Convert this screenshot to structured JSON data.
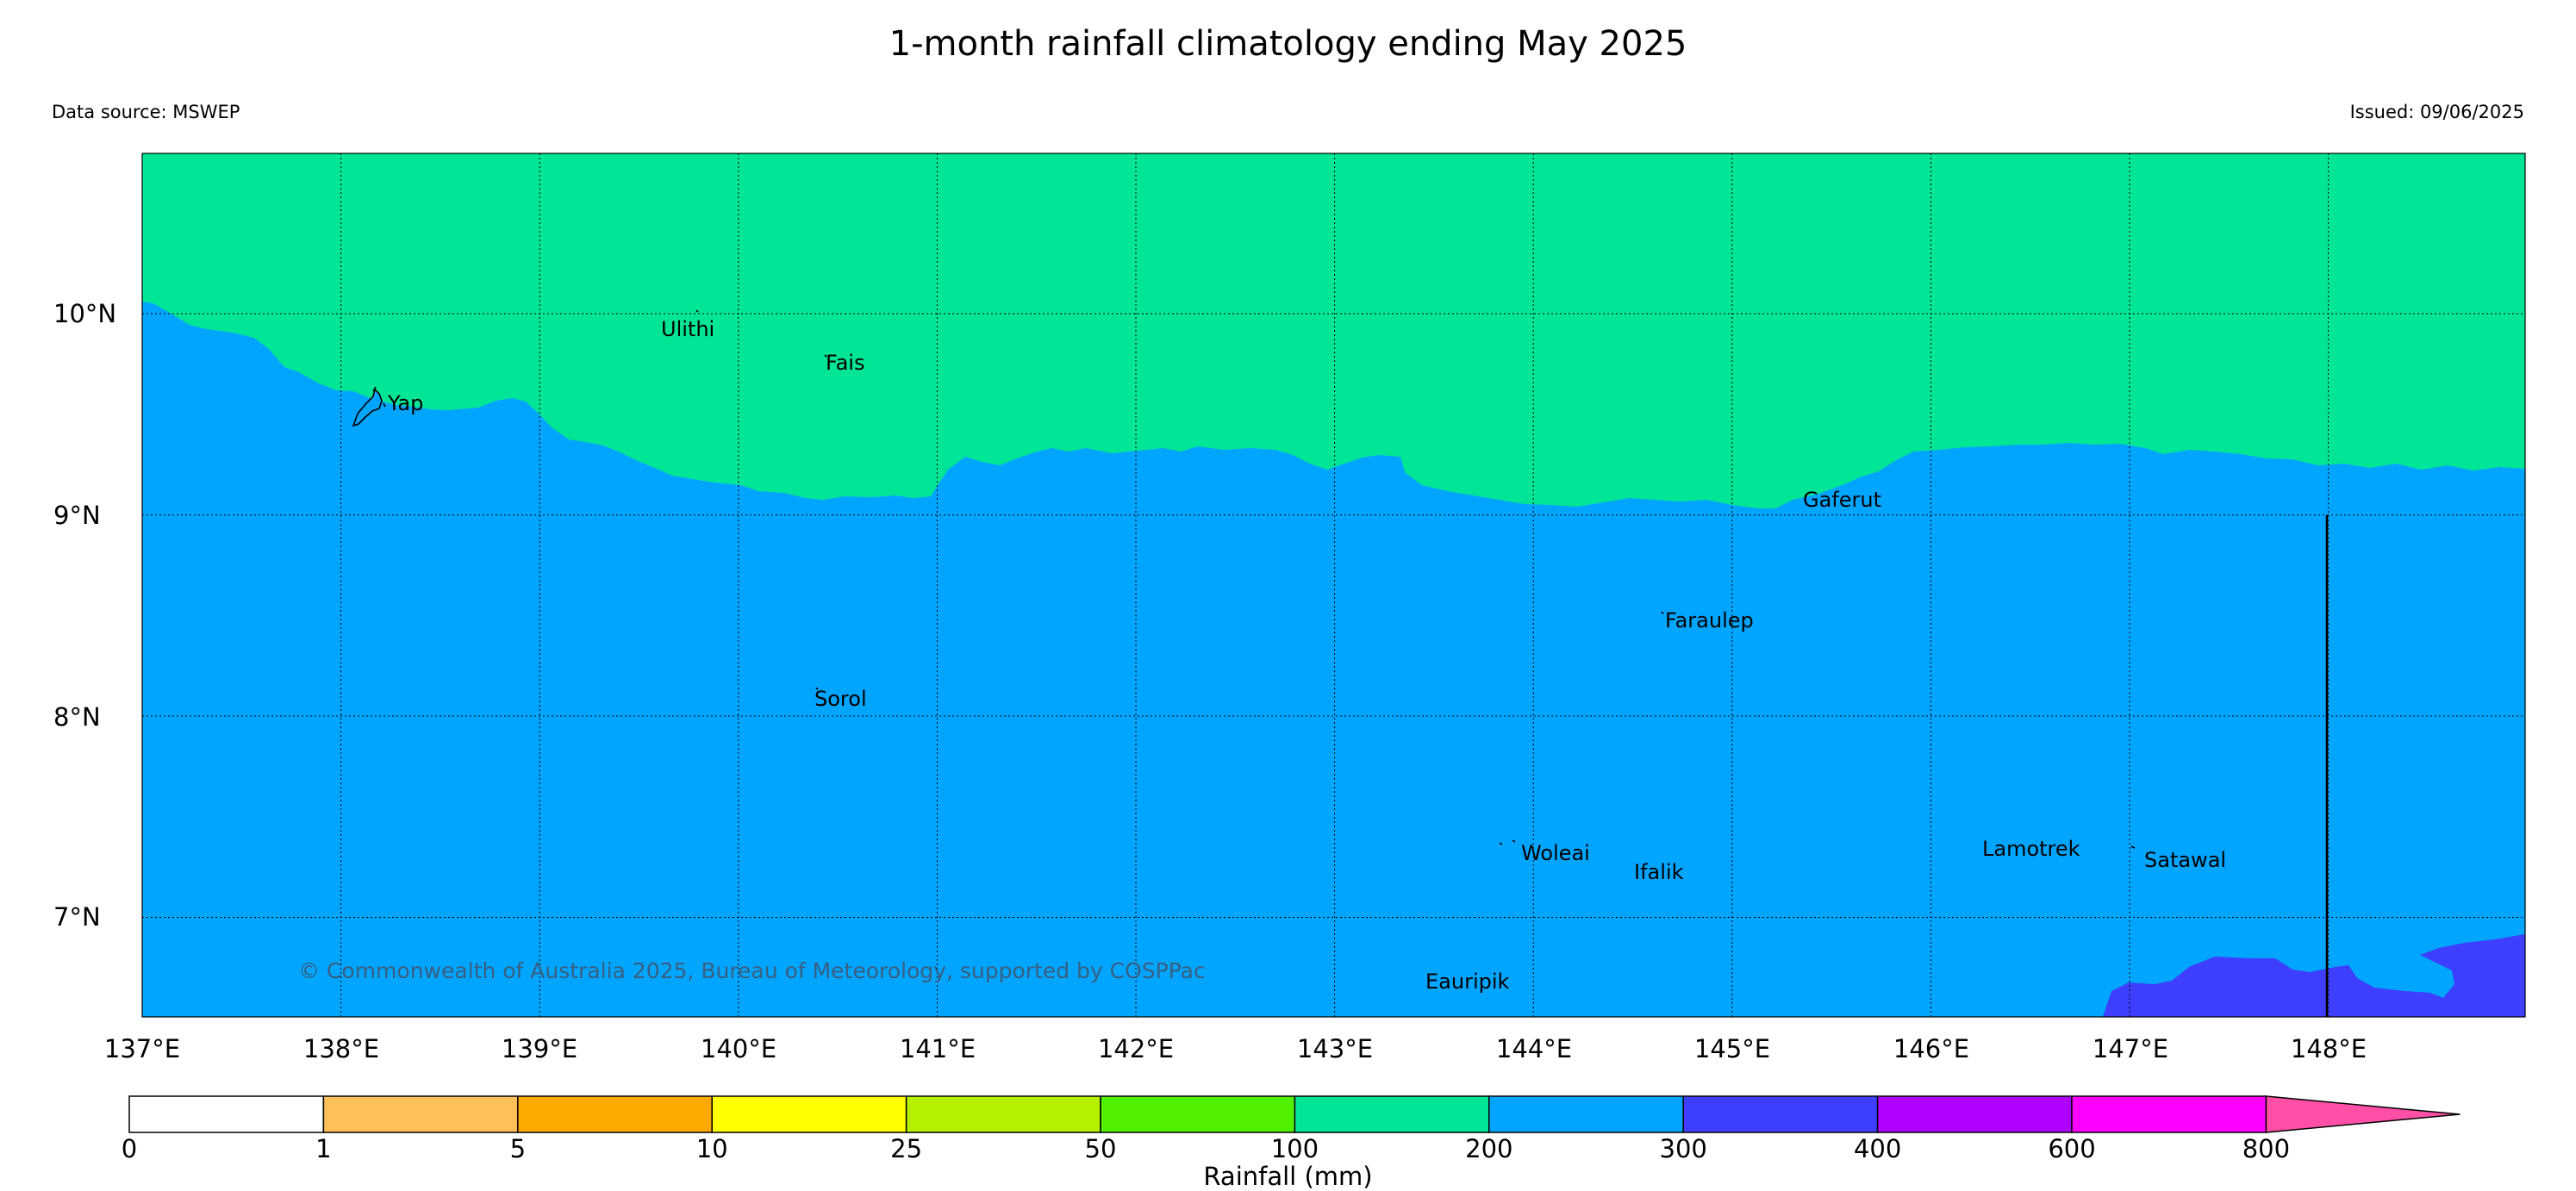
{
  "title": "1-month rainfall climatology ending May 2025",
  "data_source": "Data source: MSWEP",
  "issued": "Issued: 09/06/2025",
  "copyright": "© Commonwealth of Australia 2025, Bureau of Meteorology, supported by COSPPac",
  "map": {
    "lon_range": [
      137,
      149
    ],
    "lat_range": [
      6.5,
      10.8
    ],
    "lon_ticks": [
      "137°E",
      "138°E",
      "139°E",
      "140°E",
      "141°E",
      "142°E",
      "143°E",
      "144°E",
      "145°E",
      "146°E",
      "147°E",
      "148°E"
    ],
    "lat_ticks": [
      "10°N",
      "9°N",
      "8°N",
      "7°N"
    ],
    "grid": "dotted",
    "colors": {
      "band_100_200": "#00e596",
      "band_200_300": "#00a5ff",
      "band_300_400": "#3e3eff"
    },
    "places": [
      {
        "name": "Yap"
      },
      {
        "name": "Ulithi"
      },
      {
        "name": "Fais"
      },
      {
        "name": "Gaferut"
      },
      {
        "name": "Faraulep"
      },
      {
        "name": "Sorol"
      },
      {
        "name": "Woleai"
      },
      {
        "name": "Ifalik"
      },
      {
        "name": "Lamotrek"
      },
      {
        "name": "Satawal"
      },
      {
        "name": "Eauripik"
      }
    ]
  },
  "colorbar": {
    "title": "Rainfall (mm)",
    "labels": [
      "0",
      "1",
      "5",
      "10",
      "25",
      "50",
      "100",
      "200",
      "300",
      "400",
      "600",
      "800"
    ],
    "colors": [
      "#ffffff",
      "#ffc05a",
      "#ffaa00",
      "#ffff00",
      "#b4f000",
      "#50f000",
      "#00e596",
      "#00a5ff",
      "#3e3eff",
      "#b000ff",
      "#ff00ff",
      "#ff4fa6"
    ]
  }
}
